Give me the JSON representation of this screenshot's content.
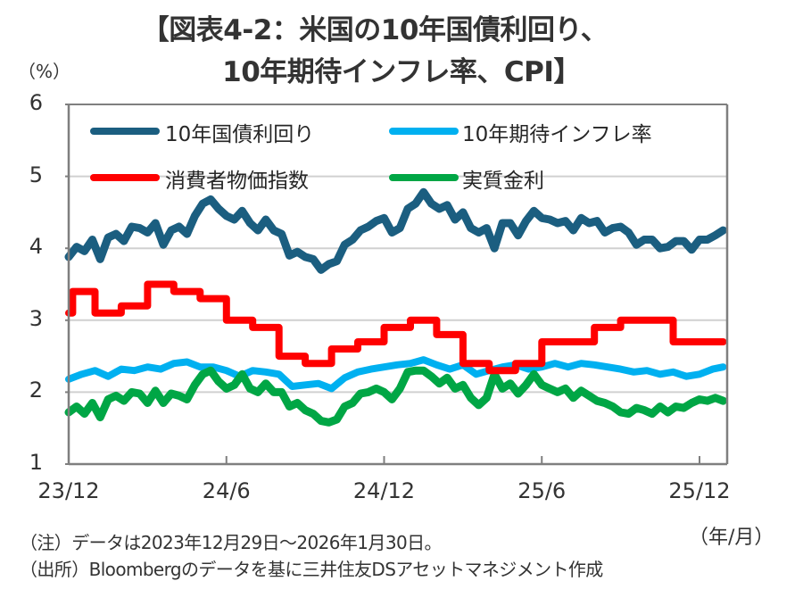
{
  "title_line1": "【図表4-2：米国の10年国債利回り、",
  "title_line2": "10年期待インフレ率、CPI】",
  "notes": {
    "note": "（注）データは2023年12月29日～2026年1月30日。",
    "source": "（出所）Bloombergのデータを基に三井住友DSアセットマネジメント作成"
  },
  "colors": {
    "treasury_10y": "#1b5e80",
    "breakeven_10y": "#00b0f0",
    "cpi": "#ff0000",
    "real_rate": "#00a645",
    "grid": "#d0d0d0",
    "axis": "#7f7f7f"
  },
  "chart_data": {
    "type": "line",
    "title": "【図表4-2：米国の10年国債利回り、10年期待インフレ率、CPI】",
    "ylabel": "（%）",
    "xlabel": "（年/月）",
    "ylim": [
      1,
      6
    ],
    "yticks": [
      "1",
      "2",
      "3",
      "4",
      "5",
      "6"
    ],
    "xlim_months": [
      0,
      25.0
    ],
    "x_unit_note": "x = months elapsed since 2023/12 end",
    "xticks": [
      {
        "label": "23/12",
        "x": 0
      },
      {
        "label": "24/6",
        "x": 6
      },
      {
        "label": "24/12",
        "x": 12
      },
      {
        "label": "25/6",
        "x": 18
      },
      {
        "label": "25/12",
        "x": 24
      }
    ],
    "grid": true,
    "legend": "top",
    "series": [
      {
        "name": "10年国債利回り",
        "key": "treasury_10y",
        "style": "line",
        "x": [
          0,
          0.3,
          0.6,
          0.9,
          1.2,
          1.5,
          1.8,
          2.1,
          2.4,
          2.7,
          3.0,
          3.3,
          3.6,
          3.9,
          4.2,
          4.5,
          4.8,
          5.1,
          5.4,
          5.7,
          6.0,
          6.3,
          6.6,
          6.9,
          7.2,
          7.5,
          7.8,
          8.1,
          8.4,
          8.7,
          9.0,
          9.3,
          9.6,
          9.9,
          10.2,
          10.5,
          10.8,
          11.1,
          11.4,
          11.7,
          12.0,
          12.3,
          12.6,
          12.9,
          13.2,
          13.5,
          13.8,
          14.1,
          14.4,
          14.7,
          15.0,
          15.3,
          15.6,
          15.9,
          16.2,
          16.5,
          16.8,
          17.1,
          17.4,
          17.7,
          18.0,
          18.3,
          18.6,
          18.9,
          19.2,
          19.5,
          19.8,
          20.1,
          20.4,
          20.7,
          21.0,
          21.3,
          21.6,
          21.9,
          22.2,
          22.5,
          22.8,
          23.1,
          23.4,
          23.7,
          24.0,
          24.3,
          24.6,
          24.9
        ],
        "y": [
          3.88,
          4.02,
          3.96,
          4.12,
          3.85,
          4.15,
          4.2,
          4.1,
          4.3,
          4.28,
          4.22,
          4.35,
          4.05,
          4.25,
          4.3,
          4.2,
          4.45,
          4.62,
          4.68,
          4.55,
          4.45,
          4.4,
          4.52,
          4.35,
          4.25,
          4.4,
          4.25,
          4.2,
          3.9,
          3.95,
          3.88,
          3.85,
          3.7,
          3.78,
          3.82,
          4.05,
          4.12,
          4.25,
          4.3,
          4.38,
          4.42,
          4.22,
          4.28,
          4.55,
          4.62,
          4.78,
          4.62,
          4.55,
          4.6,
          4.4,
          4.5,
          4.28,
          4.22,
          4.28,
          4.0,
          4.35,
          4.35,
          4.18,
          4.38,
          4.52,
          4.42,
          4.4,
          4.35,
          4.38,
          4.25,
          4.42,
          4.35,
          4.38,
          4.22,
          4.28,
          4.3,
          4.22,
          4.05,
          4.12,
          4.12,
          4.0,
          4.02,
          4.1,
          4.1,
          3.98,
          4.12,
          4.12,
          4.18,
          4.25
        ]
      },
      {
        "name": "10年期待インフレ率",
        "key": "breakeven_10y",
        "style": "line",
        "x": [
          0,
          0.5,
          1.0,
          1.5,
          2.0,
          2.5,
          3.0,
          3.5,
          4.0,
          4.5,
          5.0,
          5.5,
          6.0,
          6.5,
          7.0,
          7.5,
          8.0,
          8.5,
          9.0,
          9.5,
          10.0,
          10.5,
          11.0,
          11.5,
          12.0,
          12.5,
          13.0,
          13.5,
          14.0,
          14.5,
          15.0,
          15.5,
          16.0,
          16.5,
          17.0,
          17.5,
          18.0,
          18.5,
          19.0,
          19.5,
          20.0,
          20.5,
          21.0,
          21.5,
          22.0,
          22.5,
          23.0,
          23.5,
          24.0,
          24.5,
          24.9
        ],
        "y": [
          2.18,
          2.25,
          2.3,
          2.22,
          2.32,
          2.3,
          2.35,
          2.32,
          2.4,
          2.42,
          2.35,
          2.35,
          2.3,
          2.22,
          2.3,
          2.28,
          2.25,
          2.08,
          2.1,
          2.12,
          2.05,
          2.2,
          2.28,
          2.32,
          2.35,
          2.38,
          2.4,
          2.45,
          2.38,
          2.32,
          2.38,
          2.25,
          2.3,
          2.35,
          2.38,
          2.32,
          2.35,
          2.4,
          2.35,
          2.4,
          2.38,
          2.35,
          2.32,
          2.28,
          2.3,
          2.25,
          2.28,
          2.22,
          2.25,
          2.32,
          2.35
        ]
      },
      {
        "name": "消費者物価指数",
        "key": "cpi",
        "style": "step",
        "x": [
          0,
          0.15,
          1.0,
          2.0,
          3.0,
          4.0,
          5.0,
          6.0,
          7.0,
          8.0,
          9.0,
          10.0,
          11.0,
          12.0,
          13.0,
          14.0,
          15.0,
          16.0,
          17.0,
          18.0,
          19.0,
          20.0,
          21.0,
          22.0,
          23.0,
          24.0,
          24.9
        ],
        "y": [
          3.1,
          3.4,
          3.1,
          3.2,
          3.5,
          3.4,
          3.3,
          3.0,
          2.9,
          2.5,
          2.4,
          2.6,
          2.7,
          2.9,
          3.0,
          2.8,
          2.4,
          2.3,
          2.4,
          2.7,
          2.7,
          2.9,
          3.0,
          3.0,
          2.7,
          2.7,
          2.7
        ]
      },
      {
        "name": "実質金利",
        "key": "real_rate",
        "style": "line",
        "x": [
          0,
          0.3,
          0.6,
          0.9,
          1.2,
          1.5,
          1.8,
          2.1,
          2.4,
          2.7,
          3.0,
          3.3,
          3.6,
          3.9,
          4.2,
          4.5,
          4.8,
          5.1,
          5.4,
          5.7,
          6.0,
          6.3,
          6.6,
          6.9,
          7.2,
          7.5,
          7.8,
          8.1,
          8.4,
          8.7,
          9.0,
          9.3,
          9.6,
          9.9,
          10.2,
          10.5,
          10.8,
          11.1,
          11.4,
          11.7,
          12.0,
          12.3,
          12.6,
          12.9,
          13.2,
          13.5,
          13.8,
          14.1,
          14.4,
          14.7,
          15.0,
          15.3,
          15.6,
          15.9,
          16.2,
          16.5,
          16.8,
          17.1,
          17.4,
          17.7,
          18.0,
          18.3,
          18.6,
          18.9,
          19.2,
          19.5,
          19.8,
          20.1,
          20.4,
          20.7,
          21.0,
          21.3,
          21.6,
          21.9,
          22.2,
          22.5,
          22.8,
          23.1,
          23.4,
          23.7,
          24.0,
          24.3,
          24.6,
          24.9
        ],
        "y": [
          1.72,
          1.8,
          1.7,
          1.85,
          1.65,
          1.9,
          1.95,
          1.88,
          2.0,
          1.98,
          1.85,
          2.02,
          1.85,
          1.98,
          1.95,
          1.9,
          2.1,
          2.25,
          2.3,
          2.15,
          2.05,
          2.1,
          2.25,
          2.05,
          2.0,
          2.12,
          2.0,
          2.0,
          1.8,
          1.85,
          1.75,
          1.7,
          1.6,
          1.58,
          1.62,
          1.8,
          1.85,
          1.98,
          2.0,
          2.05,
          2.0,
          1.9,
          2.05,
          2.28,
          2.3,
          2.3,
          2.22,
          2.12,
          2.2,
          2.05,
          2.1,
          1.92,
          1.82,
          1.92,
          2.25,
          2.05,
          2.12,
          1.98,
          2.1,
          2.25,
          2.1,
          2.05,
          2.0,
          2.05,
          1.92,
          2.02,
          1.95,
          1.88,
          1.85,
          1.8,
          1.72,
          1.7,
          1.78,
          1.75,
          1.7,
          1.8,
          1.72,
          1.8,
          1.78,
          1.85,
          1.9,
          1.88,
          1.92,
          1.88
        ]
      }
    ]
  }
}
